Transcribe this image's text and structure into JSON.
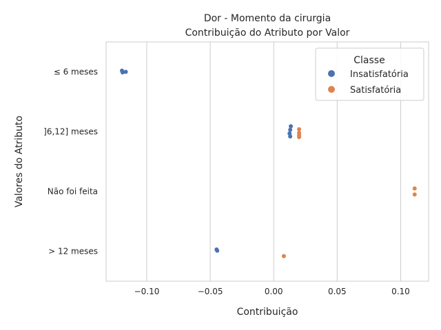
{
  "chart_data": {
    "type": "scatter",
    "title": "Dor - Momento da cirurgia",
    "subtitle": "Contribuição do Atributo por Valor",
    "xlabel": "Contribuição",
    "ylabel": "Valores do Atributo",
    "xlim": [
      -0.132,
      0.122
    ],
    "x_ticks": [
      -0.1,
      -0.05,
      0.0,
      0.05,
      0.1
    ],
    "x_tick_labels": [
      "−0.10",
      "−0.05",
      "0.00",
      "0.05",
      "0.10"
    ],
    "categories": [
      "≤ 6 meses",
      "]6,12] meses",
      "Não foi feita",
      "> 12 meses"
    ],
    "grid": "vertical",
    "legend": {
      "title": "Classe",
      "placement": "top-right"
    },
    "series": [
      {
        "name": "Insatisfatória",
        "color": "#4c72b0",
        "points": [
          {
            "category": "≤ 6 meses",
            "x": -0.1195,
            "offset": -0.02
          },
          {
            "category": "≤ 6 meses",
            "x": -0.119,
            "offset": 0.01
          },
          {
            "category": "≤ 6 meses",
            "x": -0.1165,
            "offset": 0.0
          },
          {
            "category": "]6,12] meses",
            "x": 0.0135,
            "offset": -0.09
          },
          {
            "category": "]6,12] meses",
            "x": 0.013,
            "offset": -0.03
          },
          {
            "category": "]6,12] meses",
            "x": 0.0125,
            "offset": 0.03
          },
          {
            "category": "]6,12] meses",
            "x": 0.013,
            "offset": 0.08
          },
          {
            "category": "> 12 meses",
            "x": -0.045,
            "offset": -0.03
          },
          {
            "category": "> 12 meses",
            "x": -0.0445,
            "offset": -0.01
          }
        ]
      },
      {
        "name": "Satisfatória",
        "color": "#dd8452",
        "points": [
          {
            "category": "]6,12] meses",
            "x": 0.02,
            "offset": -0.04
          },
          {
            "category": "]6,12] meses",
            "x": 0.02,
            "offset": 0.02
          },
          {
            "category": "]6,12] meses",
            "x": 0.02,
            "offset": 0.06
          },
          {
            "category": "]6,12] meses",
            "x": 0.02,
            "offset": 0.09
          },
          {
            "category": "Não foi feita",
            "x": 0.111,
            "offset": -0.05
          },
          {
            "category": "Não foi feita",
            "x": 0.111,
            "offset": 0.05
          },
          {
            "category": "> 12 meses",
            "x": 0.008,
            "offset": 0.08
          }
        ]
      }
    ]
  }
}
